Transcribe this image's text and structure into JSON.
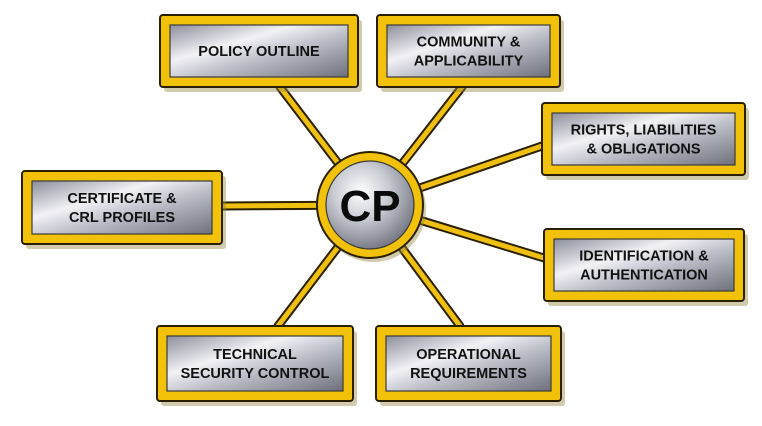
{
  "diagram": {
    "center": {
      "label": "CP"
    },
    "nodes": [
      {
        "id": "policy-outline",
        "lines": [
          "POLICY OUTLINE"
        ]
      },
      {
        "id": "community-applicability",
        "lines": [
          "COMMUNITY &",
          "APPLICABILITY"
        ]
      },
      {
        "id": "rights-liabilities-obligations",
        "lines": [
          "RIGHTS, LIABILITIES",
          "& OBLIGATIONS"
        ]
      },
      {
        "id": "identification-authentication",
        "lines": [
          "IDENTIFICATION &",
          "AUTHENTICATION"
        ]
      },
      {
        "id": "operational-requirements",
        "lines": [
          "OPERATIONAL",
          "REQUIREMENTS"
        ]
      },
      {
        "id": "technical-security-control",
        "lines": [
          "TECHNICAL",
          "SECURITY CONTROL"
        ]
      },
      {
        "id": "certificate-crl-profiles",
        "lines": [
          "CERTIFICATE &",
          "CRL PROFILES"
        ]
      }
    ],
    "colors": {
      "border_gold": "#f2c20a",
      "border_dark": "#2a2000",
      "connector_gold": "#f0c010",
      "metal_light": "#e8e8ee",
      "metal_dark": "#7d7f8c",
      "text": "#111111"
    }
  }
}
